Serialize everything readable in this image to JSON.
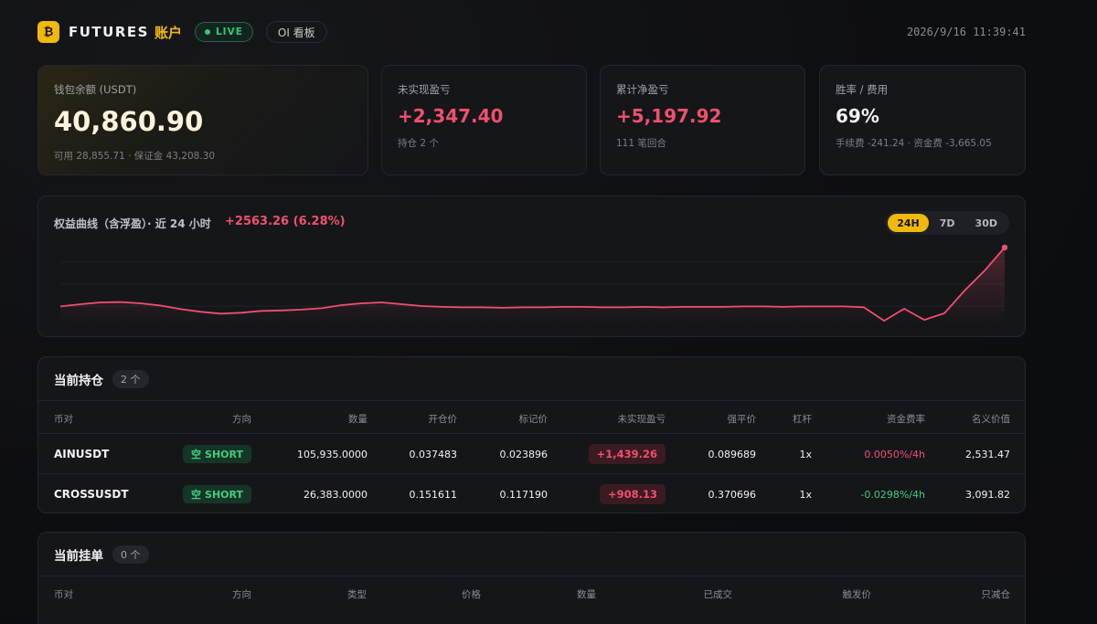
{
  "header": {
    "logo_glyph": "₿",
    "brand": "FUTURES",
    "brand_cn": "账户",
    "live_label": "LIVE",
    "oi_label": "OI 看板",
    "timestamp": "2026/9/16 11:39:41"
  },
  "stats": {
    "wallet": {
      "label": "钱包余额 (USDT)",
      "value": "40,860.90",
      "sub": "可用 28,855.71 · 保证金 43,208.30"
    },
    "unrealized": {
      "label": "未实现盈亏",
      "value": "+2,347.40",
      "sub": "持仓 2 个"
    },
    "cumulative": {
      "label": "累计净盈亏",
      "value": "+5,197.92",
      "sub": "111 笔回合"
    },
    "winrate": {
      "label": "胜率 / 费用",
      "value": "69%",
      "sub": "手续费 -241.24 · 资金费 -3,665.05"
    }
  },
  "equity": {
    "title": "权益曲线（含浮盈）· 近 24 小时",
    "change": "+2563.26 (6.28%)",
    "tabs": [
      "24H",
      "7D",
      "30D"
    ],
    "active_tab": "24H",
    "line_color": "#f0506e"
  },
  "chart_data": {
    "type": "line",
    "title": "权益曲线（含浮盈）· 近 24 小时",
    "xlabel": "",
    "ylabel": "",
    "grid": true,
    "series": [
      {
        "values": [
          0.0,
          0.5,
          0.9,
          1.0,
          0.7,
          0.2,
          -0.6,
          -1.2,
          -1.6,
          -1.4,
          -1.0,
          -0.9,
          -0.7,
          -0.4,
          0.3,
          0.7,
          0.9,
          0.5,
          0.1,
          -0.1,
          -0.2,
          -0.2,
          -0.3,
          -0.2,
          -0.2,
          -0.1,
          -0.1,
          -0.2,
          -0.2,
          -0.1,
          -0.2,
          -0.1,
          -0.1,
          -0.1,
          0.0,
          0.0,
          -0.1,
          0.0,
          0.0,
          0.0,
          -0.2,
          -3.2,
          -0.5,
          -3.0,
          -1.5,
          3.5,
          8.0,
          13.2
        ]
      }
    ]
  },
  "positions": {
    "title": "当前持仓",
    "count": "2 个",
    "headers": [
      "币对",
      "方向",
      "数量",
      "开仓价",
      "标记价",
      "未实现盈亏",
      "强平价",
      "杠杆",
      "资金费率",
      "名义价值"
    ],
    "rows": [
      {
        "symbol": "AINUSDT",
        "side": "SHORT",
        "side_cn": "空",
        "qty": "105,935.0000",
        "entry": "0.037483",
        "mark": "0.023896",
        "pnl": "+1,439.26",
        "liq": "0.089689",
        "lev": "1x",
        "funding": "0.0050%/4h",
        "funding_sign": "pos",
        "notional": "2,531.47"
      },
      {
        "symbol": "CROSSUSDT",
        "side": "SHORT",
        "side_cn": "空",
        "qty": "26,383.0000",
        "entry": "0.151611",
        "mark": "0.117190",
        "pnl": "+908.13",
        "liq": "0.370696",
        "lev": "1x",
        "funding": "-0.0298%/4h",
        "funding_sign": "neg",
        "notional": "3,091.82"
      }
    ]
  },
  "orders": {
    "title": "当前挂单",
    "count": "0 个",
    "headers": [
      "币对",
      "方向",
      "类型",
      "价格",
      "数量",
      "已成交",
      "触发价",
      "只减仓"
    ]
  }
}
